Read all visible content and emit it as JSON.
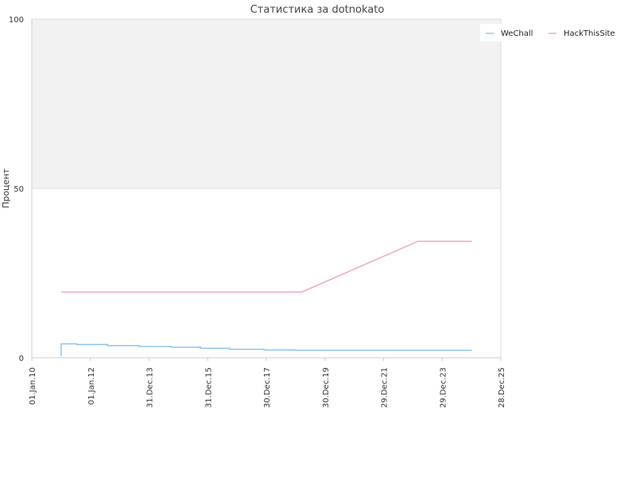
{
  "chart_data": {
    "type": "line",
    "title": "Статистика за dotnokato",
    "ylabel": "Процент",
    "xlabel": "",
    "ylim": [
      0,
      100
    ],
    "y_ticks": [
      "0",
      "50",
      "100"
    ],
    "x_ticks": [
      "01.Jan.10",
      "01.Jan.12",
      "31.Dec.13",
      "31.Dec.15",
      "30.Dec.17",
      "30.Dec.19",
      "29.Dec.21",
      "29.Dec.23",
      "28.Dec.25"
    ],
    "x_range": [
      "2010-01-01",
      "2025-12-28"
    ],
    "upper_half_shaded": true,
    "legend_position": "top-right",
    "series": [
      {
        "name": "WeChall",
        "color": "#8cc4f0",
        "points": [
          [
            "2011-01-01",
            0.5
          ],
          [
            "2011-01-01",
            4.1
          ],
          [
            "2011-07-15",
            4.1
          ],
          [
            "2011-07-15",
            3.9
          ],
          [
            "2012-08-01",
            3.9
          ],
          [
            "2012-08-01",
            3.6
          ],
          [
            "2013-09-01",
            3.6
          ],
          [
            "2013-09-01",
            3.3
          ],
          [
            "2014-10-01",
            3.3
          ],
          [
            "2014-10-01",
            3.1
          ],
          [
            "2015-10-01",
            3.1
          ],
          [
            "2015-10-01",
            2.8
          ],
          [
            "2016-10-01",
            2.8
          ],
          [
            "2016-10-01",
            2.5
          ],
          [
            "2017-12-01",
            2.5
          ],
          [
            "2017-12-01",
            2.3
          ],
          [
            "2019-01-01",
            2.3
          ],
          [
            "2019-01-01",
            2.2
          ],
          [
            "2025-01-01",
            2.2
          ]
        ]
      },
      {
        "name": "HackThisSite",
        "color": "#f0a8c0",
        "points": [
          [
            "2011-01-01",
            19.4
          ],
          [
            "2019-03-15",
            19.4
          ],
          [
            "2023-03-01",
            34.4
          ],
          [
            "2025-01-01",
            34.4
          ]
        ]
      }
    ]
  }
}
